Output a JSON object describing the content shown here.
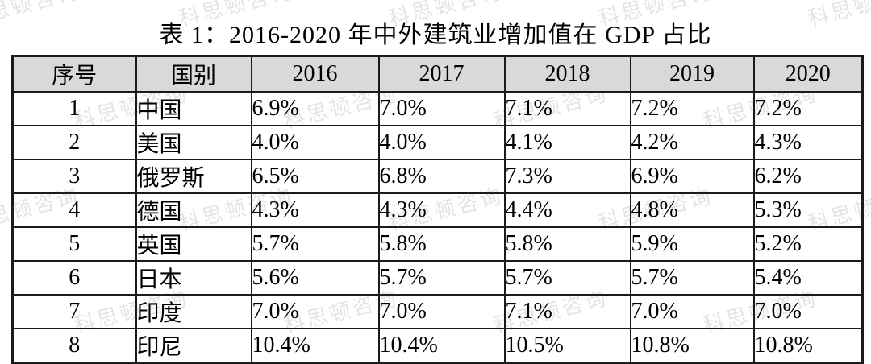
{
  "page": {
    "title": "表 1：2016-2020 年中外建筑业增加值在 GDP 占比"
  },
  "watermark": {
    "text": "科思顿咨询",
    "color": "#d6d6d6"
  },
  "table": {
    "columns": [
      "序号",
      "国别",
      "2016",
      "2017",
      "2018",
      "2019",
      "2020"
    ],
    "header_bg": "#d9d9d9",
    "border_color": "#1b1b1b",
    "rows": [
      [
        "1",
        "中国",
        "6.9%",
        "7.0%",
        "7.1%",
        "7.2%",
        "7.2%"
      ],
      [
        "2",
        "美国",
        "4.0%",
        "4.0%",
        "4.1%",
        "4.2%",
        "4.3%"
      ],
      [
        "3",
        "俄罗斯",
        "6.5%",
        "6.8%",
        "7.3%",
        "6.9%",
        "6.2%"
      ],
      [
        "4",
        "德国",
        "4.3%",
        "4.3%",
        "4.4%",
        "4.8%",
        "5.3%"
      ],
      [
        "5",
        "英国",
        "5.7%",
        "5.8%",
        "5.8%",
        "5.9%",
        "5.2%"
      ],
      [
        "6",
        "日本",
        "5.6%",
        "5.7%",
        "5.7%",
        "5.7%",
        "5.4%"
      ],
      [
        "7",
        "印度",
        "7.0%",
        "7.0%",
        "7.1%",
        "7.0%",
        "7.0%"
      ],
      [
        "8",
        "印尼",
        "10.4%",
        "10.4%",
        "10.5%",
        "10.8%",
        "10.8%"
      ]
    ]
  }
}
